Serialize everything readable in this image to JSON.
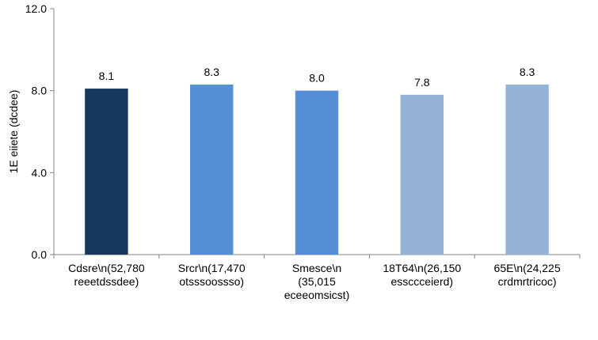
{
  "chart_data": {
    "type": "bar",
    "title": "",
    "xlabel": "",
    "ylabel": "1E eiiete (dcdee)",
    "ylim": [
      0,
      12
    ],
    "yticks": [
      "0.0",
      "4.0",
      "8.0",
      "12.0"
    ],
    "ytick_values": [
      0,
      4,
      8,
      12
    ],
    "grid": false,
    "legend": "none",
    "categories": [
      "Cdsre\\n(52,780 reeetdssdee)",
      "Srcr\\n(17,470 otsssoossso)",
      "Smesce\\n (35,015 eceeomsicst)",
      "18T64\\n(26,150 essccceierd)",
      "65E\\n(24,225 crdmrtricoc)"
    ],
    "category_lines": [
      [
        "Cdsre\\n(52,780",
        "reeetdssdee)"
      ],
      [
        "Srcr\\n(17,470",
        "otsssoossso)"
      ],
      [
        "Smesce\\n",
        "(35,015",
        "eceeomsicst)"
      ],
      [
        "18T64\\n(26,150",
        "essccceierd)"
      ],
      [
        "65E\\n(24,225",
        "crdmrtricoc)"
      ]
    ],
    "values": [
      8.1,
      8.3,
      8.0,
      7.8,
      8.3
    ],
    "value_labels": [
      "8.1",
      "8.3",
      "8.0",
      "7.8",
      "8.3"
    ],
    "colors": [
      "#17375E",
      "#558ED5",
      "#558ED5",
      "#95B3D7",
      "#95B3D7"
    ]
  }
}
